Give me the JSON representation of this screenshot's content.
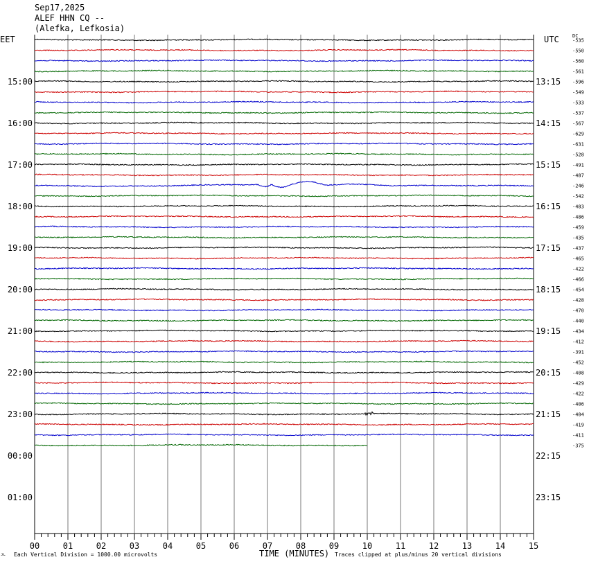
{
  "header": {
    "date": "Sep17,2025",
    "channel": "ALEF HHN CQ --",
    "location": "(Alefka, Lefkosia)"
  },
  "left_timezone": "EET",
  "right_timezone": "UTC",
  "dc_label": "DC",
  "corner_mark": "ᴊʟ",
  "chart_data": {
    "type": "line",
    "xlabel": "TIME (MINUTES)",
    "x_ticks": [
      "00",
      "01",
      "02",
      "03",
      "04",
      "05",
      "06",
      "07",
      "08",
      "09",
      "10",
      "11",
      "12",
      "13",
      "14",
      "15"
    ],
    "xlim": [
      0,
      15
    ],
    "left_hour_labels": [
      "15:00",
      "16:00",
      "17:00",
      "18:00",
      "19:00",
      "20:00",
      "21:00",
      "22:00",
      "23:00",
      "00:00",
      "01:00"
    ],
    "right_hour_labels": [
      "13:15",
      "14:15",
      "15:15",
      "16:15",
      "17:15",
      "18:15",
      "19:15",
      "20:15",
      "21:15",
      "22:15",
      "23:15"
    ],
    "trace_colors": [
      "#000000",
      "#cc0000",
      "#0000cc",
      "#006600"
    ],
    "dc_offsets": [
      "-535",
      "-550",
      "-560",
      "-561",
      "-596",
      "-549",
      "-533",
      "-537",
      "-567",
      "-629",
      "-631",
      "-528",
      "-491",
      "-487",
      "-246",
      "-542",
      "-483",
      "-486",
      "-459",
      "-435",
      "-437",
      "-465",
      "-422",
      "-466",
      "-454",
      "-428",
      "-470",
      "-440",
      "-434",
      "-412",
      "-391",
      "-452",
      "-408",
      "-429",
      "-422",
      "-406",
      "-404",
      "-419",
      "-411",
      "-375"
    ],
    "trace_count": 40,
    "last_trace_end_minute": 10,
    "vertical_division_note": "Each Vertical Division = 1000.00 microvolts",
    "clip_note": "Traces clipped at plus/minus 20 vertical divisions"
  }
}
